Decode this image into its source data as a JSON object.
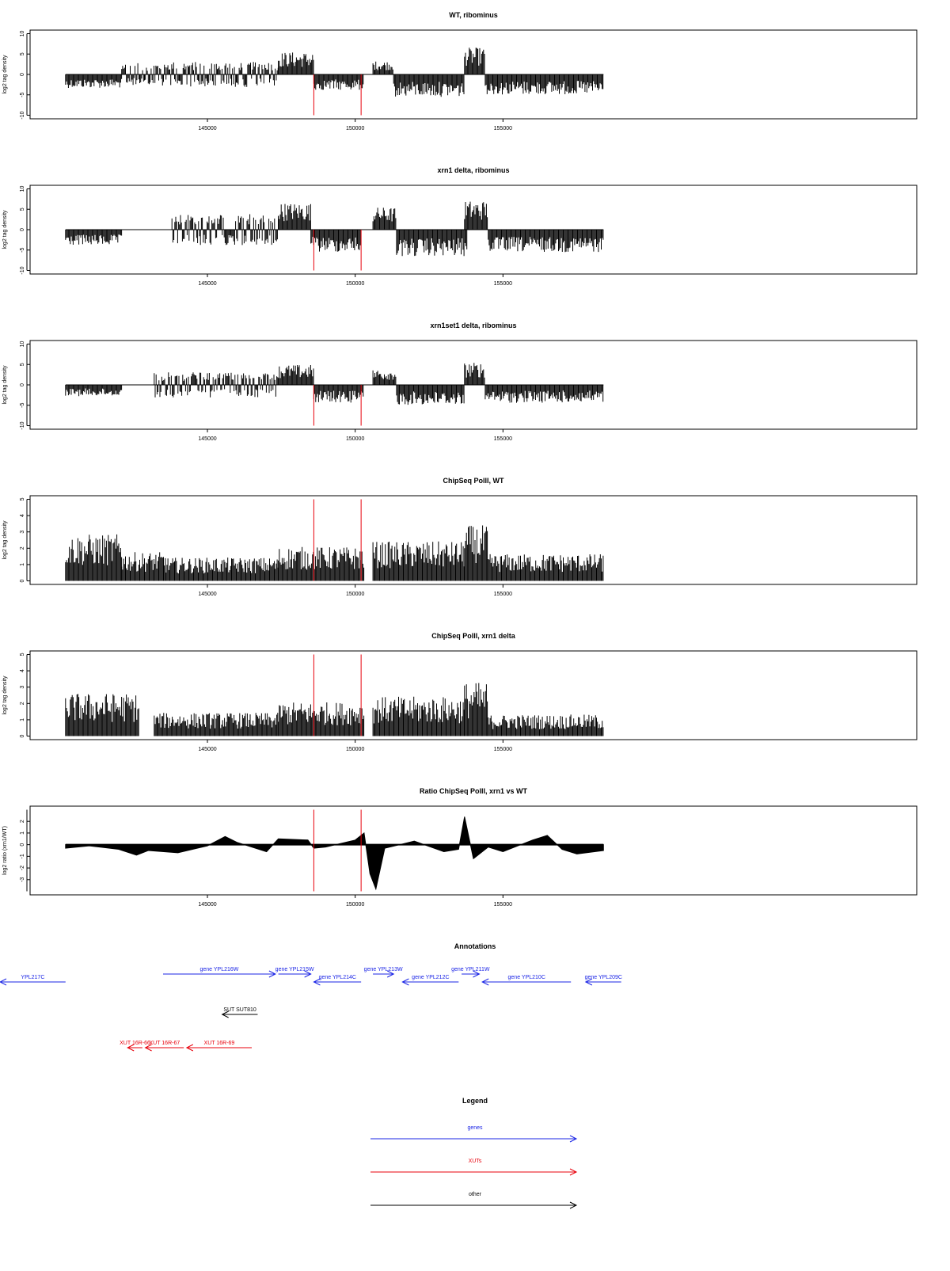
{
  "colors": {
    "signal": "#000000",
    "marker": "#e8000b",
    "gene": "#1a24e6",
    "xut": "#e8000b",
    "other": "#000000",
    "frame": "#000000"
  },
  "chart_data": [
    {
      "type": "bar",
      "title": "WT, ribominus",
      "ylabel": "log2 tag density",
      "xlim": [
        139000,
        169000
      ],
      "ylim": [
        -10,
        10
      ],
      "yticks": [
        "10",
        "5",
        "0",
        "-5",
        "-10"
      ],
      "xticks": [
        "145000",
        "150000",
        "155000"
      ],
      "markers_x": [
        148600,
        150200
      ],
      "segments": [
        {
          "x": [
            140200,
            142100
          ],
          "strand": "minus",
          "amp": 3
        },
        {
          "x": [
            142100,
            143600
          ],
          "strand": "mixed",
          "amp": 2.5
        },
        {
          "x": [
            143600,
            147400
          ],
          "strand": "mixed",
          "amp": 2.8
        },
        {
          "x": [
            147400,
            148600
          ],
          "strand": "plus",
          "amp": 5
        },
        {
          "x": [
            148600,
            150300
          ],
          "strand": "minus",
          "amp": 3.5
        },
        {
          "x": [
            150600,
            151300
          ],
          "strand": "plus",
          "amp": 3
        },
        {
          "x": [
            151300,
            153700
          ],
          "strand": "minus",
          "amp": 5
        },
        {
          "x": [
            153700,
            154400
          ],
          "strand": "plus",
          "amp": 6
        },
        {
          "x": [
            154400,
            158400
          ],
          "strand": "minus",
          "amp": 4.5
        }
      ]
    },
    {
      "type": "bar",
      "title": "xrn1 delta, ribominus",
      "ylabel": "log2 tag density",
      "xlim": [
        139000,
        169000
      ],
      "ylim": [
        -10,
        10
      ],
      "yticks": [
        "10",
        "5",
        "0",
        "-5",
        "-10"
      ],
      "xticks": [
        "145000",
        "150000",
        "155000"
      ],
      "markers_x": [
        148600,
        150200
      ],
      "segments": [
        {
          "x": [
            140200,
            142100
          ],
          "strand": "minus",
          "amp": 3.5
        },
        {
          "x": [
            143800,
            147400
          ],
          "strand": "mixed",
          "amp": 3.5
        },
        {
          "x": [
            147400,
            148500
          ],
          "strand": "plus",
          "amp": 6
        },
        {
          "x": [
            148500,
            150200
          ],
          "strand": "minus",
          "amp": 5
        },
        {
          "x": [
            150600,
            151400
          ],
          "strand": "plus",
          "amp": 5
        },
        {
          "x": [
            151400,
            153800
          ],
          "strand": "minus",
          "amp": 6
        },
        {
          "x": [
            153700,
            154500
          ],
          "strand": "plus",
          "amp": 6.5
        },
        {
          "x": [
            154500,
            158400
          ],
          "strand": "minus",
          "amp": 5
        }
      ]
    },
    {
      "type": "bar",
      "title": "xrn1set1 delta, ribominus",
      "ylabel": "log2 tag density",
      "xlim": [
        139000,
        169000
      ],
      "ylim": [
        -10,
        10
      ],
      "yticks": [
        "10",
        "5",
        "0",
        "-5",
        "-10"
      ],
      "xticks": [
        "145000",
        "150000",
        "155000"
      ],
      "markers_x": [
        148600,
        150200
      ],
      "segments": [
        {
          "x": [
            140200,
            142100
          ],
          "strand": "minus",
          "amp": 2.5
        },
        {
          "x": [
            143200,
            147400
          ],
          "strand": "mixed",
          "amp": 2.8
        },
        {
          "x": [
            147400,
            148600
          ],
          "strand": "plus",
          "amp": 4.5
        },
        {
          "x": [
            148600,
            150300
          ],
          "strand": "minus",
          "amp": 4
        },
        {
          "x": [
            150600,
            151400
          ],
          "strand": "plus",
          "amp": 3.5
        },
        {
          "x": [
            151400,
            153700
          ],
          "strand": "minus",
          "amp": 4.5
        },
        {
          "x": [
            153700,
            154400
          ],
          "strand": "plus",
          "amp": 5
        },
        {
          "x": [
            154400,
            158400
          ],
          "strand": "minus",
          "amp": 4
        }
      ]
    },
    {
      "type": "bar",
      "title": "ChipSeq PolII, WT",
      "ylabel": "log2 tag density",
      "xlim": [
        139000,
        169000
      ],
      "ylim": [
        0,
        5
      ],
      "yticks": [
        "5",
        "4",
        "3",
        "2",
        "1",
        "0"
      ],
      "xticks": [
        "145000",
        "150000",
        "155000"
      ],
      "markers_x": [
        148600,
        150200
      ],
      "segments": [
        {
          "x": [
            140200,
            142100
          ],
          "strand": "plus",
          "amp": 2.6
        },
        {
          "x": [
            142100,
            143600
          ],
          "strand": "plus",
          "amp": 1.6
        },
        {
          "x": [
            143600,
            147400
          ],
          "strand": "plus",
          "amp": 1.3
        },
        {
          "x": [
            147400,
            150300
          ],
          "strand": "plus",
          "amp": 1.9
        },
        {
          "x": [
            150600,
            153700
          ],
          "strand": "plus",
          "amp": 2.2
        },
        {
          "x": [
            153700,
            154500
          ],
          "strand": "plus",
          "amp": 3.1
        },
        {
          "x": [
            154500,
            158400
          ],
          "strand": "plus",
          "amp": 1.5
        }
      ]
    },
    {
      "type": "bar",
      "title": "ChipSeq PolII, xrn1 delta",
      "ylabel": "log2 tag density",
      "xlim": [
        139000,
        169000
      ],
      "ylim": [
        0,
        5
      ],
      "yticks": [
        "5",
        "4",
        "3",
        "2",
        "1",
        "0"
      ],
      "xticks": [
        "145000",
        "150000",
        "155000"
      ],
      "markers_x": [
        148600,
        150200
      ],
      "segments": [
        {
          "x": [
            140200,
            142700
          ],
          "strand": "plus",
          "amp": 2.4
        },
        {
          "x": [
            143200,
            147400
          ],
          "strand": "plus",
          "amp": 1.3
        },
        {
          "x": [
            147400,
            150300
          ],
          "strand": "plus",
          "amp": 1.9
        },
        {
          "x": [
            150600,
            153700
          ],
          "strand": "plus",
          "amp": 2.2
        },
        {
          "x": [
            153700,
            154500
          ],
          "strand": "plus",
          "amp": 3.0
        },
        {
          "x": [
            154500,
            158400
          ],
          "strand": "plus",
          "amp": 1.2
        }
      ]
    },
    {
      "type": "area",
      "title": "Ratio ChipSeq PolII, xrn1 vs WT",
      "ylabel": "log2 ratio (xrn1/WT)",
      "xlim": [
        139000,
        169000
      ],
      "ylim": [
        -4,
        3
      ],
      "yticks": [
        "2",
        "1",
        "0",
        "-1",
        "-2",
        "-3"
      ],
      "xticks": [
        "145000",
        "150000",
        "155000"
      ],
      "markers_x": [
        148600,
        150200
      ],
      "points": [
        [
          140200,
          -0.3
        ],
        [
          141000,
          -0.1
        ],
        [
          142000,
          -0.4
        ],
        [
          142600,
          -0.9
        ],
        [
          143000,
          -0.5
        ],
        [
          144000,
          -0.7
        ],
        [
          145000,
          -0.1
        ],
        [
          145600,
          0.7
        ],
        [
          146000,
          0.2
        ],
        [
          147000,
          -0.6
        ],
        [
          147400,
          0.5
        ],
        [
          148400,
          0.4
        ],
        [
          148600,
          -0.3
        ],
        [
          149000,
          -0.2
        ],
        [
          150000,
          0.4
        ],
        [
          150300,
          1.0
        ],
        [
          150500,
          -2.5
        ],
        [
          150700,
          -3.8
        ],
        [
          151000,
          -0.3
        ],
        [
          152000,
          0.3
        ],
        [
          153000,
          -0.6
        ],
        [
          153500,
          -0.4
        ],
        [
          153700,
          2.4
        ],
        [
          154000,
          -1.2
        ],
        [
          154500,
          -0.2
        ],
        [
          155000,
          -0.6
        ],
        [
          156000,
          0.4
        ],
        [
          156500,
          0.8
        ],
        [
          157000,
          -0.4
        ],
        [
          157500,
          -0.8
        ],
        [
          158400,
          -0.5
        ]
      ]
    }
  ],
  "annotations": {
    "title": "Annotations",
    "features": [
      {
        "label": "YPL217C",
        "type": "gene",
        "start": 140200,
        "end": 137000,
        "strand": "-",
        "row": 2
      },
      {
        "label": "gene YPL216W",
        "type": "gene",
        "start": 143500,
        "end": 147300,
        "strand": "+",
        "row": 1
      },
      {
        "label": "gene YPL215W",
        "type": "gene",
        "start": 147400,
        "end": 148500,
        "strand": "+",
        "row": 1
      },
      {
        "label": "gene YPL214C",
        "type": "gene",
        "start": 150200,
        "end": 148600,
        "strand": "-",
        "row": 2
      },
      {
        "label": "gene YPL213W",
        "type": "gene",
        "start": 150600,
        "end": 151300,
        "strand": "+",
        "row": 1
      },
      {
        "label": "gene YPL212C",
        "type": "gene",
        "start": 153500,
        "end": 151600,
        "strand": "-",
        "row": 2
      },
      {
        "label": "gene YPL211W",
        "type": "gene",
        "start": 153600,
        "end": 154200,
        "strand": "+",
        "row": 1
      },
      {
        "label": "gene YPL210C",
        "type": "gene",
        "start": 157300,
        "end": 154300,
        "strand": "-",
        "row": 2
      },
      {
        "label": "gene YPL209C",
        "type": "gene",
        "start": 159000,
        "end": 157800,
        "strand": "-",
        "row": 2
      },
      {
        "label": "SUT SUT810",
        "type": "other",
        "start": 146700,
        "end": 145500,
        "strand": "-",
        "row": 3
      },
      {
        "label": "XUT 16R-66",
        "type": "xut",
        "start": 142800,
        "end": 142300,
        "strand": "-",
        "row": 4
      },
      {
        "label": "XUT 16R-67",
        "type": "xut",
        "start": 144200,
        "end": 142900,
        "strand": "-",
        "row": 4
      },
      {
        "label": "XUT 16R-69",
        "type": "xut",
        "start": 146500,
        "end": 144300,
        "strand": "-",
        "row": 4
      }
    ]
  },
  "legend": {
    "title": "Legend",
    "items": [
      {
        "label": "genes",
        "type": "gene"
      },
      {
        "label": "XUTs",
        "type": "xut"
      },
      {
        "label": "other",
        "type": "other"
      }
    ]
  }
}
